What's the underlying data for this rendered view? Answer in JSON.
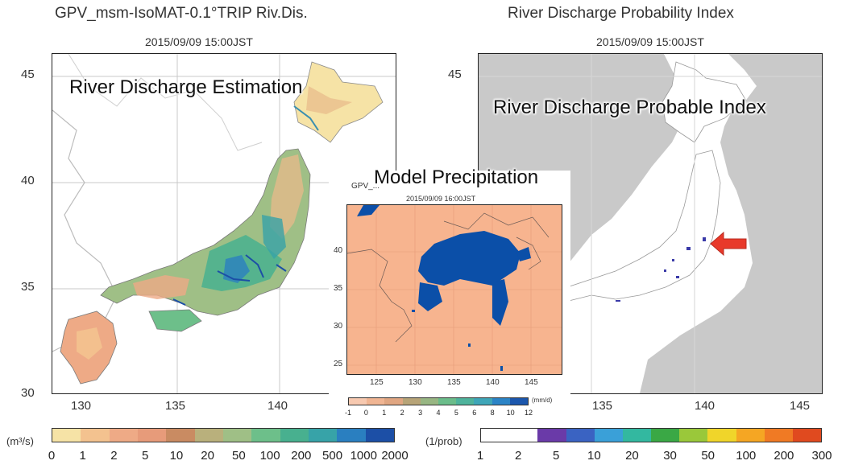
{
  "left_panel": {
    "title": "GPV_msm-IsoMAT-0.1°TRIP Riv.Dis.",
    "date": "2015/09/09 15:00JST",
    "overlay_label": "River Discharge Estimation",
    "lat_ticks": [
      "45",
      "40",
      "35",
      "30"
    ],
    "lon_ticks": [
      "130",
      "135",
      "140"
    ],
    "colorbar": {
      "unit": "(m³/s)",
      "labels": [
        "0",
        "1",
        "2",
        "5",
        "10",
        "20",
        "50",
        "100",
        "200",
        "500",
        "1000",
        "2000"
      ],
      "colors": [
        "#f6e3a6",
        "#f3c28f",
        "#eeaa86",
        "#e79b7a",
        "#c98b62",
        "#b9b07c",
        "#9fbf86",
        "#6dbf8a",
        "#48b08f",
        "#37a3a8",
        "#2a7fc0",
        "#1c4fa6"
      ]
    }
  },
  "center_panel": {
    "overlay_label": "Model Precipitation",
    "title": "GPV_...",
    "date": "2015/09/09 16:00JST",
    "lat_ticks": [
      "40",
      "35",
      "30",
      "25"
    ],
    "lon_ticks": [
      "125",
      "130",
      "135",
      "140",
      "145"
    ],
    "colorbar": {
      "unit": "(mm/d)",
      "labels": [
        "-1",
        "0",
        "1",
        "2",
        "3",
        "4",
        "5",
        "6",
        "8",
        "10",
        "12"
      ],
      "colors": [
        "#f7c9b0",
        "#f0b593",
        "#e0a682",
        "#b7a478",
        "#98b683",
        "#6bbd8b",
        "#4fb39c",
        "#3fa6b8",
        "#2c84c6",
        "#1c57ad"
      ]
    },
    "background_color": "#f7b48f",
    "rain_color": "#0b4fa8"
  },
  "right_panel": {
    "title": "River Discharge Probability Index",
    "date": "2015/09/09 15:00JST",
    "overlay_label": "River Discharge Probable Index",
    "lat_ticks": [
      "45"
    ],
    "lon_ticks": [
      "135",
      "140",
      "145"
    ],
    "arrow_color": "#e8392a",
    "colorbar": {
      "unit": "(1/prob)",
      "labels": [
        "1",
        "2",
        "5",
        "10",
        "20",
        "30",
        "50",
        "100",
        "200",
        "300"
      ],
      "colors": [
        "#ffffff",
        "#ffffff",
        "#6a3aa8",
        "#3a63c2",
        "#3aa0d8",
        "#33b8a0",
        "#3aa845",
        "#9ac83a",
        "#f0d52a",
        "#f5a623",
        "#f07a24",
        "#e04a1f"
      ]
    }
  }
}
